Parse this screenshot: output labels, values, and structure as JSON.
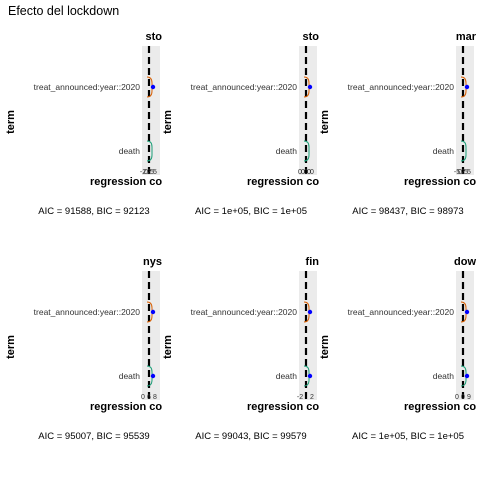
{
  "figure": {
    "title": "Efecto del lockdown"
  },
  "colors": {
    "panel_strip": "#ebebeb",
    "zero_line": "#000000",
    "point": "#0000ff",
    "bracket_interaction": "#d95f02",
    "bracket_death": "#1b9e77"
  },
  "chart_data": [
    {
      "type": "coefficient",
      "title": "sto",
      "ylabel": "term",
      "xlabel": "regression co",
      "terms": [
        "treat_announced:year::2020",
        "death"
      ],
      "x_ticks": [
        "-2",
        "0",
        "2",
        "5",
        "5"
      ],
      "stats": "AIC = 91588, BIC = 92123"
    },
    {
      "type": "coefficient",
      "title": "sto",
      "ylabel": "term",
      "xlabel": "regression co",
      "terms": [
        "treat_announced:year::2020",
        "death"
      ],
      "x_ticks": [
        "0",
        "0",
        "0",
        "0",
        "0"
      ],
      "stats": "AIC = 1e+05, BIC = 1e+05"
    },
    {
      "type": "coefficient",
      "title": "mar",
      "ylabel": "term",
      "xlabel": "regression co",
      "terms": [
        "treat_announced:year::2020",
        "death"
      ],
      "x_ticks": [
        "-5",
        "0",
        "2",
        "5",
        "5"
      ],
      "stats": "AIC = 98437, BIC = 98973"
    },
    {
      "type": "coefficient",
      "title": "nys",
      "ylabel": "term",
      "xlabel": "regression co",
      "terms": [
        "treat_announced:year::2020",
        "death"
      ],
      "x_ticks": [
        "0",
        "6",
        "8"
      ],
      "stats": "AIC = 95007, BIC = 95539"
    },
    {
      "type": "coefficient",
      "title": "fin",
      "ylabel": "term",
      "xlabel": "regression co",
      "terms": [
        "treat_announced:year::2020",
        "death"
      ],
      "x_ticks": [
        "-2",
        "2"
      ],
      "stats": "AIC = 99043, BIC = 99579"
    },
    {
      "type": "coefficient",
      "title": "dow",
      "ylabel": "term",
      "xlabel": "regression co",
      "terms": [
        "treat_announced:year::2020",
        "death"
      ],
      "x_ticks": [
        "0",
        "0",
        "9"
      ],
      "stats": "AIC = 1e+05, BIC = 1e+05"
    }
  ]
}
